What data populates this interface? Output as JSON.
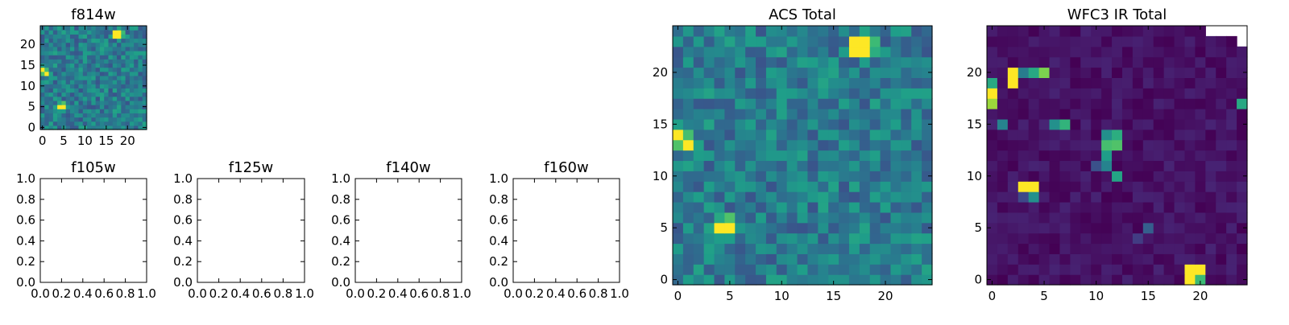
{
  "colors": {
    "colormap": [
      "#440154",
      "#482878",
      "#3e4989",
      "#31688e",
      "#26828e",
      "#1f9e89",
      "#35b779",
      "#6ece58",
      "#b5de2b",
      "#fde725"
    ],
    "frame": "#000000",
    "background": "#ffffff"
  },
  "chart_data": [
    {
      "type": "heatmap",
      "title": "f814w",
      "xlabel": "",
      "ylabel": "",
      "xlim": [
        -0.5,
        24.5
      ],
      "ylim": [
        -0.5,
        24.5
      ],
      "xticks": [
        0,
        5,
        10,
        15,
        20
      ],
      "xtick_labels": [
        "0",
        "5",
        "10",
        "15",
        "20"
      ],
      "yticks": [
        0,
        5,
        10,
        15,
        20
      ],
      "ytick_labels": [
        "0",
        "5",
        "10",
        "15",
        "20"
      ],
      "grid": false,
      "dims": [
        25,
        25
      ],
      "texture": {
        "seed": 7,
        "base": 0.42,
        "spread": 0.16
      },
      "hotspots": [
        {
          "x": 17,
          "y": 22,
          "v": 1.0
        },
        {
          "x": 18,
          "y": 22,
          "v": 1.0
        },
        {
          "x": 17,
          "y": 23,
          "v": 1.0
        },
        {
          "x": 18,
          "y": 23,
          "v": 1.0
        },
        {
          "x": 19,
          "y": 23,
          "v": 0.68
        },
        {
          "x": 19,
          "y": 22,
          "v": 0.62
        },
        {
          "x": 18,
          "y": 21,
          "v": 0.55
        },
        {
          "x": 18,
          "y": 24,
          "v": 0.58
        },
        {
          "x": 0,
          "y": 14,
          "v": 1.0
        },
        {
          "x": 1,
          "y": 13,
          "v": 1.0
        },
        {
          "x": 0,
          "y": 13,
          "v": 0.72
        },
        {
          "x": 1,
          "y": 14,
          "v": 0.7
        },
        {
          "x": 0,
          "y": 15,
          "v": 0.56
        },
        {
          "x": 4,
          "y": 5,
          "v": 1.0
        },
        {
          "x": 5,
          "y": 5,
          "v": 1.0
        },
        {
          "x": 5,
          "y": 6,
          "v": 0.72
        },
        {
          "x": 4,
          "y": 6,
          "v": 0.6
        },
        {
          "x": 4,
          "y": 4,
          "v": 0.55
        },
        {
          "x": 5,
          "y": 4,
          "v": 0.55
        }
      ]
    },
    {
      "type": "line",
      "title": "f105w",
      "xlabel": "",
      "ylabel": "",
      "xlim": [
        0,
        1
      ],
      "ylim": [
        0,
        1
      ],
      "xticks": [
        0,
        0.2,
        0.4,
        0.6,
        0.8,
        1.0
      ],
      "xtick_labels": [
        "0.0",
        "0.2",
        "0.4",
        "0.6",
        "0.8",
        "1.0"
      ],
      "yticks": [
        0,
        0.2,
        0.4,
        0.6,
        0.8,
        1.0
      ],
      "ytick_labels": [
        "0.0",
        "0.2",
        "0.4",
        "0.6",
        "0.8",
        "1.0"
      ],
      "series": []
    },
    {
      "type": "line",
      "title": "f125w",
      "xlabel": "",
      "ylabel": "",
      "xlim": [
        0,
        1
      ],
      "ylim": [
        0,
        1
      ],
      "xticks": [
        0,
        0.2,
        0.4,
        0.6,
        0.8,
        1.0
      ],
      "xtick_labels": [
        "0.0",
        "0.2",
        "0.4",
        "0.6",
        "0.8",
        "1.0"
      ],
      "yticks": [
        0,
        0.2,
        0.4,
        0.6,
        0.8,
        1.0
      ],
      "ytick_labels": [
        "0.0",
        "0.2",
        "0.4",
        "0.6",
        "0.8",
        "1.0"
      ],
      "series": []
    },
    {
      "type": "line",
      "title": "f140w",
      "xlabel": "",
      "ylabel": "",
      "xlim": [
        0,
        1
      ],
      "ylim": [
        0,
        1
      ],
      "xticks": [
        0,
        0.2,
        0.4,
        0.6,
        0.8,
        1.0
      ],
      "xtick_labels": [
        "0.0",
        "0.2",
        "0.4",
        "0.6",
        "0.8",
        "1.0"
      ],
      "yticks": [
        0,
        0.2,
        0.4,
        0.6,
        0.8,
        1.0
      ],
      "ytick_labels": [
        "0.0",
        "0.2",
        "0.4",
        "0.6",
        "0.8",
        "1.0"
      ],
      "series": []
    },
    {
      "type": "line",
      "title": "f160w",
      "xlabel": "",
      "ylabel": "",
      "xlim": [
        0,
        1
      ],
      "ylim": [
        0,
        1
      ],
      "xticks": [
        0,
        0.2,
        0.4,
        0.6,
        0.8,
        1.0
      ],
      "xtick_labels": [
        "0.0",
        "0.2",
        "0.4",
        "0.6",
        "0.8",
        "1.0"
      ],
      "yticks": [
        0,
        0.2,
        0.4,
        0.6,
        0.8,
        1.0
      ],
      "ytick_labels": [
        "0.0",
        "0.2",
        "0.4",
        "0.6",
        "0.8",
        "1.0"
      ],
      "series": []
    },
    {
      "type": "heatmap",
      "title": "ACS Total",
      "xlabel": "",
      "ylabel": "",
      "xlim": [
        -0.5,
        24.5
      ],
      "ylim": [
        -0.5,
        24.5
      ],
      "xticks": [
        0,
        5,
        10,
        15,
        20
      ],
      "xtick_labels": [
        "0",
        "5",
        "10",
        "15",
        "20"
      ],
      "yticks": [
        0,
        5,
        10,
        15,
        20
      ],
      "ytick_labels": [
        "0",
        "5",
        "10",
        "15",
        "20"
      ],
      "grid": false,
      "dims": [
        25,
        25
      ],
      "texture": {
        "seed": 7,
        "base": 0.42,
        "spread": 0.16
      },
      "hotspots": [
        {
          "x": 17,
          "y": 22,
          "v": 1.0
        },
        {
          "x": 18,
          "y": 22,
          "v": 1.0
        },
        {
          "x": 17,
          "y": 23,
          "v": 1.0
        },
        {
          "x": 18,
          "y": 23,
          "v": 1.0
        },
        {
          "x": 19,
          "y": 23,
          "v": 0.68
        },
        {
          "x": 19,
          "y": 22,
          "v": 0.62
        },
        {
          "x": 18,
          "y": 21,
          "v": 0.55
        },
        {
          "x": 18,
          "y": 24,
          "v": 0.58
        },
        {
          "x": 0,
          "y": 14,
          "v": 1.0
        },
        {
          "x": 1,
          "y": 13,
          "v": 1.0
        },
        {
          "x": 0,
          "y": 13,
          "v": 0.72
        },
        {
          "x": 1,
          "y": 14,
          "v": 0.7
        },
        {
          "x": 0,
          "y": 15,
          "v": 0.56
        },
        {
          "x": 4,
          "y": 5,
          "v": 1.0
        },
        {
          "x": 5,
          "y": 5,
          "v": 1.0
        },
        {
          "x": 5,
          "y": 6,
          "v": 0.72
        },
        {
          "x": 4,
          "y": 6,
          "v": 0.6
        },
        {
          "x": 4,
          "y": 4,
          "v": 0.55
        },
        {
          "x": 5,
          "y": 4,
          "v": 0.55
        }
      ]
    },
    {
      "type": "heatmap",
      "title": "WFC3 IR Total",
      "xlabel": "",
      "ylabel": "",
      "xlim": [
        -0.5,
        24.5
      ],
      "ylim": [
        -0.5,
        24.5
      ],
      "xticks": [
        0,
        5,
        10,
        15,
        20
      ],
      "xtick_labels": [
        "0",
        "5",
        "10",
        "15",
        "20"
      ],
      "yticks": [
        0,
        5,
        10,
        15,
        20
      ],
      "ytick_labels": [
        "0",
        "5",
        "10",
        "15",
        "20"
      ],
      "grid": false,
      "dims": [
        25,
        25
      ],
      "texture": {
        "seed": 19,
        "base": 0.05,
        "spread": 0.05
      },
      "masked": [
        {
          "x": 21,
          "y": 24
        },
        {
          "x": 22,
          "y": 24
        },
        {
          "x": 23,
          "y": 24
        },
        {
          "x": 24,
          "y": 24
        },
        {
          "x": 24,
          "y": 23
        }
      ],
      "hotspots": [
        {
          "x": 2,
          "y": 20,
          "v": 1.0
        },
        {
          "x": 2,
          "y": 19,
          "v": 1.0
        },
        {
          "x": 3,
          "y": 20,
          "v": 0.42
        },
        {
          "x": 4,
          "y": 20,
          "v": 0.6
        },
        {
          "x": 5,
          "y": 20,
          "v": 0.8
        },
        {
          "x": 0,
          "y": 19,
          "v": 0.6
        },
        {
          "x": 0,
          "y": 18,
          "v": 1.0
        },
        {
          "x": 0,
          "y": 17,
          "v": 0.85
        },
        {
          "x": 1,
          "y": 15,
          "v": 0.45
        },
        {
          "x": 6,
          "y": 15,
          "v": 0.5
        },
        {
          "x": 7,
          "y": 15,
          "v": 0.65
        },
        {
          "x": 11,
          "y": 14,
          "v": 0.5
        },
        {
          "x": 12,
          "y": 14,
          "v": 0.62
        },
        {
          "x": 11,
          "y": 13,
          "v": 0.7
        },
        {
          "x": 12,
          "y": 13,
          "v": 0.72
        },
        {
          "x": 11,
          "y": 12,
          "v": 0.55
        },
        {
          "x": 11,
          "y": 11,
          "v": 0.45
        },
        {
          "x": 10,
          "y": 11,
          "v": 0.25
        },
        {
          "x": 12,
          "y": 10,
          "v": 0.58
        },
        {
          "x": 24,
          "y": 17,
          "v": 0.6
        },
        {
          "x": 3,
          "y": 9,
          "v": 1.0
        },
        {
          "x": 4,
          "y": 9,
          "v": 1.0
        },
        {
          "x": 4,
          "y": 8,
          "v": 0.5
        },
        {
          "x": 3,
          "y": 8,
          "v": 0.22
        },
        {
          "x": 15,
          "y": 5,
          "v": 0.3
        },
        {
          "x": 14,
          "y": 4,
          "v": 0.18
        },
        {
          "x": 19,
          "y": 1,
          "v": 1.0
        },
        {
          "x": 20,
          "y": 1,
          "v": 1.0
        },
        {
          "x": 19,
          "y": 0,
          "v": 1.0
        },
        {
          "x": 20,
          "y": 0,
          "v": 0.68
        }
      ]
    }
  ]
}
